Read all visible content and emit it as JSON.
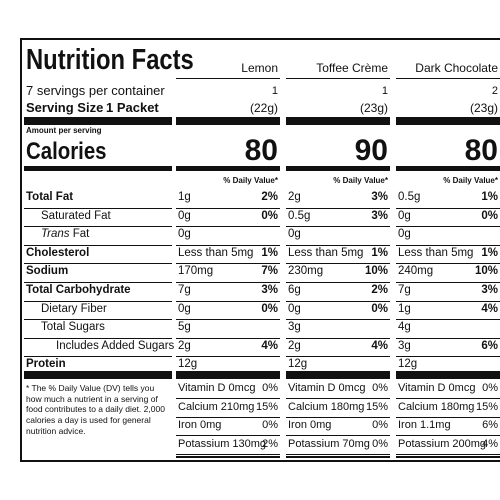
{
  "header": {
    "title": "Nutrition Facts",
    "servings": "7 servings per container",
    "serving_size_label": "Serving Size",
    "serving_size_value": "1 Packet",
    "amount_per_serving": "Amount per serving",
    "calories_label": "Calories",
    "dv_header": "% Daily Value*"
  },
  "columns": [
    {
      "name": "Lemon",
      "servings": "1",
      "serving_grams": "(22g)",
      "calories": 80
    },
    {
      "name": "Toffee Crème",
      "servings": "1",
      "serving_grams": "(23g)",
      "calories": 90
    },
    {
      "name": "Dark Chocolate",
      "servings": "2",
      "serving_grams": "(23g)",
      "calories": 80
    }
  ],
  "rows": [
    {
      "label": "Total Fat",
      "bold": true,
      "values": [
        [
          "1g",
          "2%"
        ],
        [
          "2g",
          "3%"
        ],
        [
          "0.5g",
          "1%"
        ]
      ]
    },
    {
      "label": "Saturated Fat",
      "indent": 1,
      "values": [
        [
          "0g",
          "0%"
        ],
        [
          "0.5g",
          "3%"
        ],
        [
          "0g",
          "0%"
        ]
      ]
    },
    {
      "label_italic": "Trans",
      "label": "Fat",
      "indent": 1,
      "values": [
        [
          "0g"
        ],
        [
          "0g"
        ],
        [
          "0g"
        ]
      ]
    },
    {
      "label": "Cholesterol",
      "bold": true,
      "values": [
        [
          "Less than 5mg",
          "1%"
        ],
        [
          "Less than 5mg",
          "1%"
        ],
        [
          "Less than 5mg",
          "1%"
        ]
      ]
    },
    {
      "label": "Sodium",
      "bold": true,
      "values": [
        [
          "170mg",
          "7%"
        ],
        [
          "230mg",
          "10%"
        ],
        [
          "240mg",
          "10%"
        ]
      ]
    },
    {
      "label": "Total Carbohydrate",
      "bold": true,
      "values": [
        [
          "7g",
          "3%"
        ],
        [
          "6g",
          "2%"
        ],
        [
          "7g",
          "3%"
        ]
      ]
    },
    {
      "label": "Dietary Fiber",
      "indent": 1,
      "values": [
        [
          "0g",
          "0%"
        ],
        [
          "0g",
          "0%"
        ],
        [
          "1g",
          "4%"
        ]
      ]
    },
    {
      "label": "Total Sugars",
      "indent": 1,
      "values": [
        [
          "5g"
        ],
        [
          "3g"
        ],
        [
          "4g"
        ]
      ]
    },
    {
      "label": "Includes Added Sugars",
      "indent": 2,
      "values": [
        [
          "2g",
          "4%"
        ],
        [
          "2g",
          "4%"
        ],
        [
          "3g",
          "6%"
        ]
      ]
    },
    {
      "label": "Protein",
      "bold": true,
      "values": [
        [
          "12g"
        ],
        [
          "12g"
        ],
        [
          "12g"
        ]
      ]
    }
  ],
  "vitamins": [
    [
      [
        "Vitamin D 0mcg",
        "0%"
      ],
      [
        "Calcium 210mg",
        "15%"
      ],
      [
        "Iron 0mg",
        "0%"
      ],
      [
        "Potassium 130mg",
        "2%"
      ]
    ],
    [
      [
        "Vitamin D 0mcg",
        "0%"
      ],
      [
        "Calcium 180mg",
        "15%"
      ],
      [
        "Iron 0mg",
        "0%"
      ],
      [
        "Potassium 70mg",
        "0%"
      ]
    ],
    [
      [
        "Vitamin D 0mcg",
        "0%"
      ],
      [
        "Calcium 180mg",
        "15%"
      ],
      [
        "Iron 1.1mg",
        "6%"
      ],
      [
        "Potassium 200mg",
        "4%"
      ]
    ]
  ],
  "footnote": "* The % Daily Value (DV) tells you how much a nutrient in a serving of food contributes to a daily diet. 2,000 calories a day is used for general nutrition advice."
}
